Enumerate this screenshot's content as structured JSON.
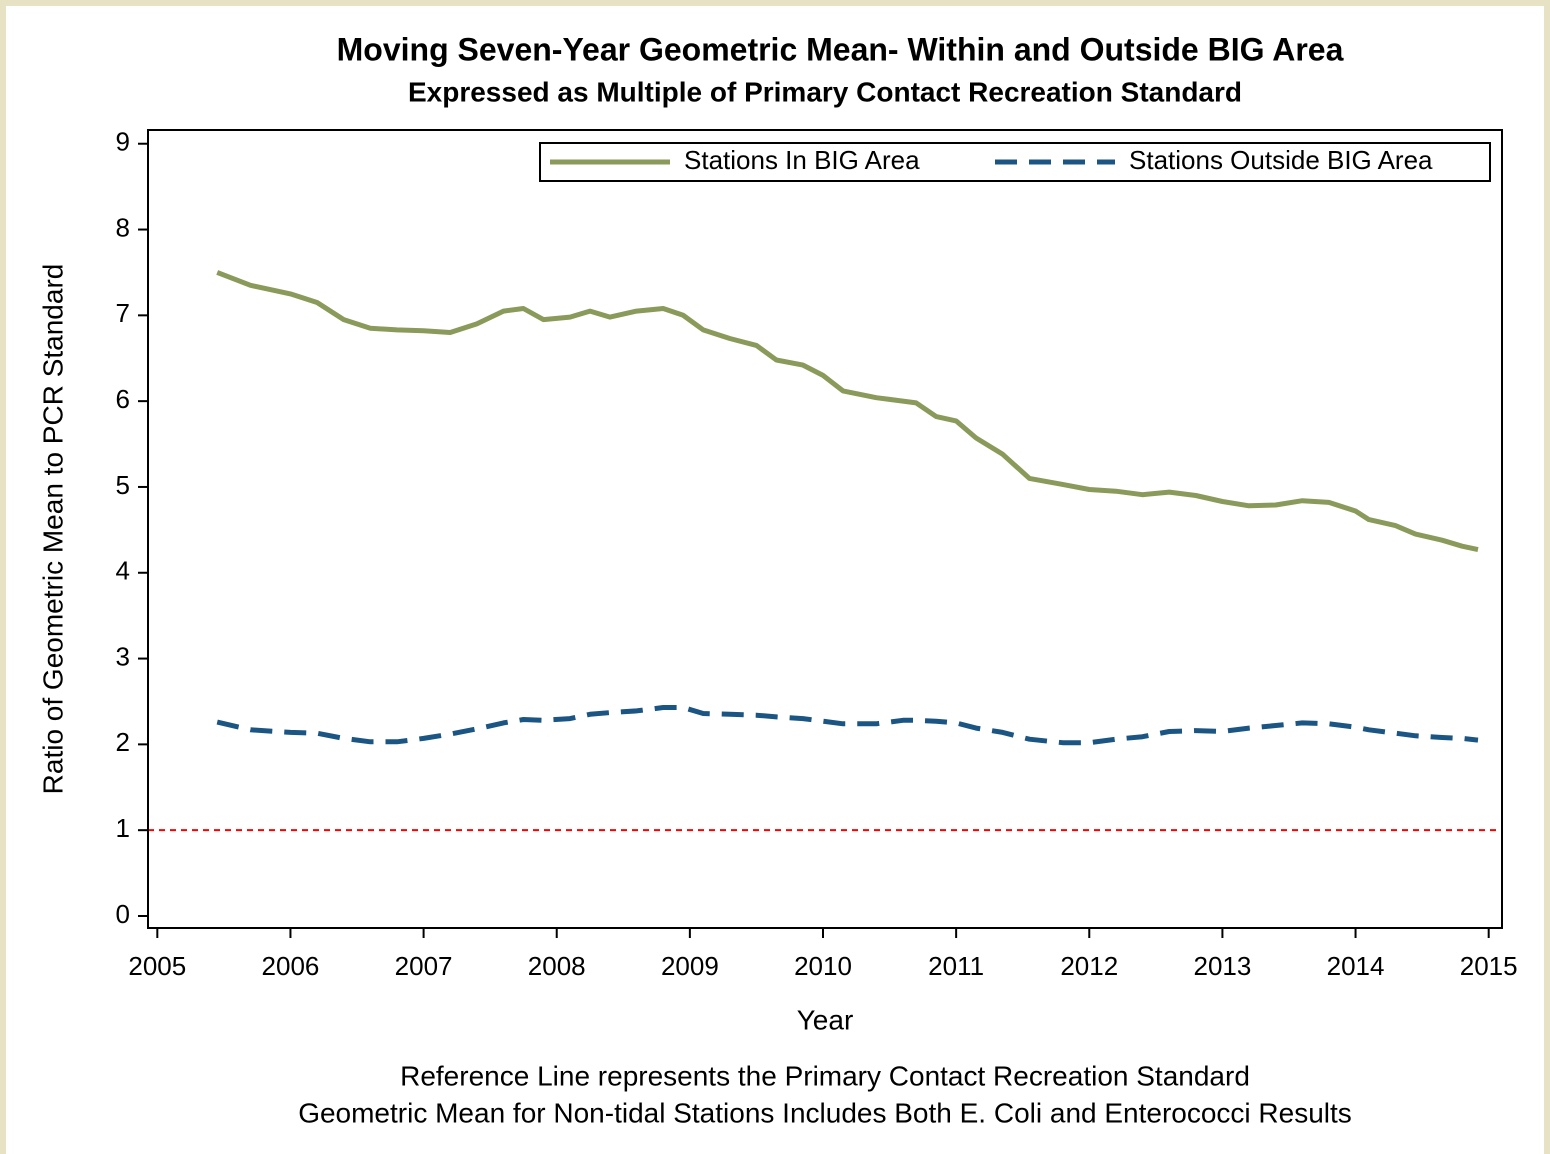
{
  "chart_data": {
    "type": "line",
    "title": "Moving Seven-Year Geometric Mean- Within and Outside BIG Area",
    "subtitle": "Expressed as Multiple of Primary Contact Recreation Standard",
    "x_label": "Year",
    "y_label": "Ratio of Geometric Mean to PCR Standard",
    "notes": [
      "Reference Line represents the Primary Contact Recreation Standard",
      "Geometric Mean for Non-tidal Stations Includes Both E. Coli and Enterococci Results"
    ],
    "x": [
      2005.45,
      2005.7,
      2006.0,
      2006.2,
      2006.4,
      2006.6,
      2006.8,
      2007.0,
      2007.2,
      2007.4,
      2007.6,
      2007.75,
      2007.9,
      2008.1,
      2008.25,
      2008.4,
      2008.6,
      2008.8,
      2008.95,
      2009.1,
      2009.3,
      2009.5,
      2009.65,
      2009.85,
      2010.0,
      2010.15,
      2010.4,
      2010.6,
      2010.7,
      2010.85,
      2011.0,
      2011.15,
      2011.35,
      2011.55,
      2011.8,
      2012.0,
      2012.2,
      2012.4,
      2012.6,
      2012.8,
      2013.0,
      2013.2,
      2013.4,
      2013.6,
      2013.8,
      2014.0,
      2014.1,
      2014.3,
      2014.45,
      2014.65,
      2014.8,
      2014.92
    ],
    "series": [
      {
        "name": "Stations In BIG Area",
        "color": "#8a9a5b",
        "dash": "solid",
        "values": [
          7.5,
          7.35,
          7.25,
          7.15,
          6.95,
          6.85,
          6.83,
          6.82,
          6.8,
          6.9,
          7.05,
          7.08,
          6.95,
          6.98,
          7.05,
          6.98,
          7.05,
          7.08,
          7.0,
          6.83,
          6.73,
          6.65,
          6.48,
          6.42,
          6.3,
          6.12,
          6.04,
          6.0,
          5.98,
          5.82,
          5.77,
          5.57,
          5.38,
          5.1,
          5.03,
          4.97,
          4.95,
          4.91,
          4.94,
          4.9,
          4.83,
          4.78,
          4.79,
          4.84,
          4.82,
          4.72,
          4.62,
          4.55,
          4.45,
          4.38,
          4.31,
          4.27
        ]
      },
      {
        "name": "Stations Outside BIG Area",
        "color": "#1b5583",
        "dash": "dashed",
        "values": [
          2.26,
          2.17,
          2.14,
          2.13,
          2.07,
          2.03,
          2.03,
          2.07,
          2.12,
          2.18,
          2.25,
          2.29,
          2.28,
          2.3,
          2.35,
          2.37,
          2.39,
          2.43,
          2.43,
          2.36,
          2.35,
          2.34,
          2.32,
          2.3,
          2.27,
          2.24,
          2.24,
          2.28,
          2.28,
          2.27,
          2.25,
          2.19,
          2.14,
          2.06,
          2.02,
          2.02,
          2.06,
          2.09,
          2.15,
          2.16,
          2.15,
          2.19,
          2.22,
          2.25,
          2.24,
          2.2,
          2.17,
          2.13,
          2.1,
          2.08,
          2.07,
          2.05
        ]
      }
    ],
    "reference_line": {
      "value": 1,
      "color": "#ff0000"
    },
    "xlim": [
      2004.93,
      2015.1
    ],
    "xticks": [
      2005,
      2006,
      2007,
      2008,
      2009,
      2010,
      2011,
      2012,
      2013,
      2014,
      2015
    ],
    "ylim": [
      -0.14,
      9.16
    ],
    "yticks": [
      0,
      1,
      2,
      3,
      4,
      5,
      6,
      7,
      8,
      9
    ],
    "legend": "top-right"
  }
}
